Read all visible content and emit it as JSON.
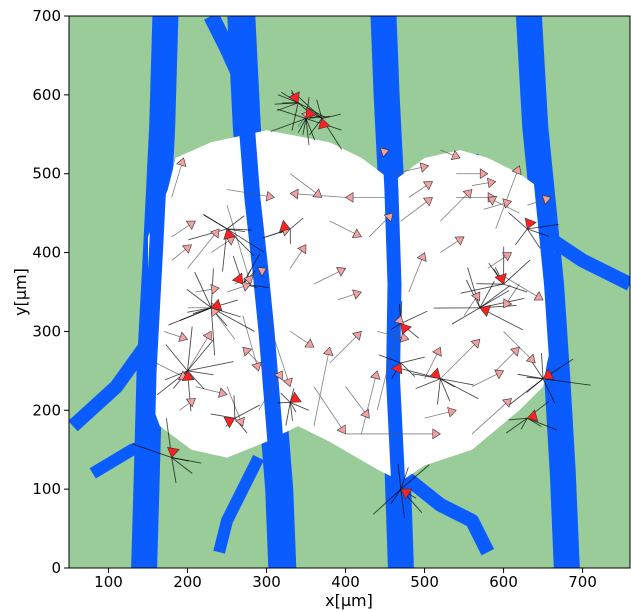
{
  "chart_data": {
    "type": "scatter",
    "xlabel": "x[μm]",
    "ylabel": "y[μm]",
    "xlim": [
      50,
      760
    ],
    "ylim": [
      0,
      700
    ],
    "xticks": [
      100,
      200,
      300,
      400,
      500,
      600,
      700
    ],
    "yticks": [
      0,
      100,
      200,
      300,
      400,
      500,
      600,
      700
    ],
    "grid": false,
    "legend": "none",
    "colors": {
      "tissue_background": "#99cc99",
      "vessel": "#0b5cff",
      "wound_region": "#ffffff",
      "arrow_fill": "#f4a0a0",
      "arrow_highlight": "#ff2020",
      "trail": "#555555",
      "cluster_trail": "#000000"
    },
    "vessel_segments": [
      {
        "points": [
          [
            145,
            0
          ],
          [
            148,
            100
          ],
          [
            152,
            250
          ],
          [
            160,
            400
          ],
          [
            168,
            560
          ],
          [
            172,
            700
          ]
        ],
        "width": 26
      },
      {
        "points": [
          [
            320,
            0
          ],
          [
            316,
            100
          ],
          [
            308,
            200
          ],
          [
            300,
            300
          ],
          [
            292,
            380
          ],
          [
            282,
            470
          ],
          [
            275,
            560
          ],
          [
            268,
            700
          ]
        ],
        "width": 28
      },
      {
        "points": [
          [
            470,
            0
          ],
          [
            466,
            120
          ],
          [
            460,
            240
          ],
          [
            462,
            360
          ],
          [
            458,
            480
          ],
          [
            452,
            600
          ],
          [
            448,
            700
          ]
        ],
        "width": 26
      },
      {
        "points": [
          [
            680,
            0
          ],
          [
            675,
            120
          ],
          [
            668,
            240
          ],
          [
            660,
            360
          ],
          [
            650,
            460
          ],
          [
            640,
            560
          ],
          [
            632,
            700
          ]
        ],
        "width": 26
      },
      {
        "points": [
          [
            55,
            180
          ],
          [
            110,
            230
          ],
          [
            160,
            300
          ],
          [
            210,
            330
          ],
          [
            245,
            345
          ]
        ],
        "width": 14
      },
      {
        "points": [
          [
            80,
            120
          ],
          [
            130,
            150
          ],
          [
            160,
            160
          ]
        ],
        "width": 12
      },
      {
        "points": [
          [
            230,
            700
          ],
          [
            250,
            660
          ],
          [
            268,
            620
          ]
        ],
        "width": 16
      },
      {
        "points": [
          [
            560,
            520
          ],
          [
            600,
            470
          ],
          [
            640,
            430
          ],
          [
            700,
            390
          ],
          [
            760,
            360
          ]
        ],
        "width": 14
      },
      {
        "points": [
          [
            470,
            120
          ],
          [
            520,
            80
          ],
          [
            560,
            60
          ],
          [
            580,
            20
          ]
        ],
        "width": 14
      },
      {
        "points": [
          [
            290,
            140
          ],
          [
            270,
            100
          ],
          [
            250,
            60
          ],
          [
            240,
            20
          ]
        ],
        "width": 12
      }
    ],
    "wound_polygon": [
      [
        150,
        260
      ],
      [
        150,
        420
      ],
      [
        175,
        480
      ],
      [
        185,
        520
      ],
      [
        230,
        540
      ],
      [
        300,
        555
      ],
      [
        380,
        540
      ],
      [
        420,
        520
      ],
      [
        460,
        490
      ],
      [
        500,
        520
      ],
      [
        545,
        530
      ],
      [
        580,
        520
      ],
      [
        620,
        500
      ],
      [
        655,
        475
      ],
      [
        655,
        440
      ],
      [
        665,
        400
      ],
      [
        665,
        300
      ],
      [
        655,
        260
      ],
      [
        650,
        230
      ],
      [
        620,
        200
      ],
      [
        560,
        150
      ],
      [
        500,
        130
      ],
      [
        470,
        110
      ],
      [
        440,
        125
      ],
      [
        380,
        160
      ],
      [
        340,
        180
      ],
      [
        300,
        160
      ],
      [
        250,
        140
      ],
      [
        205,
        150
      ],
      [
        165,
        180
      ],
      [
        150,
        220
      ]
    ],
    "trajectories": [
      {
        "from": [
          360,
          180
        ],
        "to": [
          380,
          280
        ]
      },
      {
        "from": [
          420,
          170
        ],
        "to": [
          440,
          250
        ]
      },
      {
        "from": [
          380,
          260
        ],
        "to": [
          420,
          300
        ]
      },
      {
        "from": [
          300,
          320
        ],
        "to": [
          330,
          230
        ]
      },
      {
        "from": [
          250,
          480
        ],
        "to": [
          310,
          470
        ]
      },
      {
        "from": [
          180,
          470
        ],
        "to": [
          195,
          520
        ]
      },
      {
        "from": [
          250,
          460
        ],
        "to": [
          280,
          360
        ]
      },
      {
        "from": [
          300,
          420
        ],
        "to": [
          330,
          430
        ]
      },
      {
        "from": [
          200,
          330
        ],
        "to": [
          240,
          330
        ]
      },
      {
        "from": [
          520,
          240
        ],
        "to": [
          570,
          290
        ]
      },
      {
        "from": [
          590,
          430
        ],
        "to": [
          620,
          510
        ]
      },
      {
        "from": [
          540,
          470
        ],
        "to": [
          590,
          470
        ]
      },
      {
        "from": [
          600,
          300
        ],
        "to": [
          640,
          260
        ]
      },
      {
        "from": [
          500,
          190
        ],
        "to": [
          540,
          200
        ]
      },
      {
        "from": [
          560,
          170
        ],
        "to": [
          610,
          215
        ]
      },
      {
        "from": [
          440,
          200
        ],
        "to": [
          470,
          320
        ]
      },
      {
        "from": [
          330,
          500
        ],
        "to": [
          370,
          470
        ]
      },
      {
        "from": [
          400,
          230
        ],
        "to": [
          430,
          190
        ]
      },
      {
        "from": [
          270,
          320
        ],
        "to": [
          290,
          250
        ]
      },
      {
        "from": [
          160,
          260
        ],
        "to": [
          200,
          240
        ]
      },
      {
        "from": [
          340,
          560
        ],
        "to": [
          355,
          580
        ]
      },
      {
        "from": [
          600,
          370
        ],
        "to": [
          650,
          340
        ]
      },
      {
        "from": [
          580,
          380
        ],
        "to": [
          610,
          400
        ]
      },
      {
        "from": [
          440,
          300
        ],
        "to": [
          480,
          290
        ]
      },
      {
        "from": [
          360,
          230
        ],
        "to": [
          400,
          170
        ]
      },
      {
        "from": [
          470,
          440
        ],
        "to": [
          510,
          470
        ]
      },
      {
        "from": [
          290,
          200
        ],
        "to": [
          320,
          250
        ]
      },
      {
        "from": [
          200,
          380
        ],
        "to": [
          240,
          430
        ]
      },
      {
        "from": [
          520,
          440
        ],
        "to": [
          560,
          480
        ]
      },
      {
        "from": [
          620,
          360
        ],
        "to": [
          600,
          330
        ]
      },
      {
        "from": [
          230,
          400
        ],
        "to": [
          260,
          420
        ]
      },
      {
        "from": [
          330,
          300
        ],
        "to": [
          360,
          280
        ]
      },
      {
        "from": [
          380,
          440
        ],
        "to": [
          420,
          420
        ]
      },
      {
        "from": [
          560,
          230
        ],
        "to": [
          600,
          250
        ]
      },
      {
        "from": [
          200,
          250
        ],
        "to": [
          230,
          300
        ]
      },
      {
        "from": [
          250,
          230
        ],
        "to": [
          270,
          180
        ]
      },
      {
        "from": [
          390,
          340
        ],
        "to": [
          420,
          350
        ]
      },
      {
        "from": [
          480,
          350
        ],
        "to": [
          500,
          400
        ]
      },
      {
        "from": [
          170,
          300
        ],
        "to": [
          200,
          290
        ]
      },
      {
        "from": [
          500,
          240
        ],
        "to": [
          520,
          280
        ]
      },
      {
        "from": [
          260,
          360
        ],
        "to": [
          300,
          380
        ]
      },
      {
        "from": [
          620,
          450
        ],
        "to": [
          580,
          470
        ]
      },
      {
        "from": [
          300,
          250
        ],
        "to": [
          270,
          280
        ]
      },
      {
        "from": [
          330,
          380
        ],
        "to": [
          350,
          410
        ]
      },
      {
        "from": [
          550,
          320
        ],
        "to": [
          570,
          350
        ]
      },
      {
        "from": [
          430,
          420
        ],
        "to": [
          460,
          450
        ]
      },
      {
        "from": [
          590,
          250
        ],
        "to": [
          620,
          280
        ]
      },
      {
        "from": [
          180,
          420
        ],
        "to": [
          210,
          440
        ]
      },
      {
        "from": [
          360,
          360
        ],
        "to": [
          400,
          380
        ]
      },
      {
        "from": [
          260,
          290
        ],
        "to": [
          230,
          330
        ]
      },
      {
        "from": [
          450,
          470
        ],
        "to": [
          400,
          470
        ]
      },
      {
        "from": [
          400,
          470
        ],
        "to": [
          330,
          475
        ]
      },
      {
        "from": [
          400,
          170
        ],
        "to": [
          520,
          170
        ]
      }
    ],
    "highlight_clusters": [
      {
        "center": [
          340,
          590
        ],
        "n": 10,
        "spread": 26
      },
      {
        "center": [
          350,
          570
        ],
        "n": 10,
        "spread": 30
      },
      {
        "center": [
          230,
          330
        ],
        "n": 12,
        "spread": 40
      },
      {
        "center": [
          200,
          250
        ],
        "n": 10,
        "spread": 38
      },
      {
        "center": [
          250,
          430
        ],
        "n": 9,
        "spread": 34
      },
      {
        "center": [
          270,
          360
        ],
        "n": 6,
        "spread": 30
      },
      {
        "center": [
          330,
          210
        ],
        "n": 7,
        "spread": 28
      },
      {
        "center": [
          470,
          310
        ],
        "n": 5,
        "spread": 28
      },
      {
        "center": [
          520,
          240
        ],
        "n": 8,
        "spread": 36
      },
      {
        "center": [
          570,
          330
        ],
        "n": 10,
        "spread": 38
      },
      {
        "center": [
          600,
          360
        ],
        "n": 8,
        "spread": 34
      },
      {
        "center": [
          650,
          240
        ],
        "n": 9,
        "spread": 38
      },
      {
        "center": [
          630,
          190
        ],
        "n": 6,
        "spread": 30
      },
      {
        "center": [
          180,
          140
        ],
        "n": 6,
        "spread": 34
      },
      {
        "center": [
          470,
          100
        ],
        "n": 8,
        "spread": 30
      },
      {
        "center": [
          370,
          570
        ],
        "n": 6,
        "spread": 30
      },
      {
        "center": [
          470,
          260
        ],
        "n": 4,
        "spread": 26
      },
      {
        "center": [
          260,
          190
        ],
        "n": 5,
        "spread": 26
      },
      {
        "center": [
          330,
          430
        ],
        "n": 4,
        "spread": 24
      },
      {
        "center": [
          630,
          430
        ],
        "n": 5,
        "spread": 28
      }
    ],
    "flow_arrows_along_vessels": [
      {
        "at": [
          540,
          500
        ],
        "to": [
          580,
          500
        ]
      },
      {
        "at": [
          460,
          500
        ],
        "to": [
          505,
          510
        ]
      },
      {
        "at": [
          440,
          525
        ],
        "to": [
          455,
          530
        ]
      },
      {
        "at": [
          520,
          530
        ],
        "to": [
          545,
          520
        ]
      },
      {
        "at": [
          480,
          470
        ],
        "to": [
          510,
          490
        ]
      },
      {
        "at": [
          560,
          485
        ],
        "to": [
          590,
          490
        ]
      },
      {
        "at": [
          575,
          455
        ],
        "to": [
          610,
          465
        ]
      },
      {
        "at": [
          210,
          350
        ],
        "to": [
          240,
          355
        ]
      },
      {
        "at": [
          250,
          350
        ],
        "to": [
          280,
          360
        ]
      },
      {
        "at": [
          180,
          390
        ],
        "to": [
          205,
          410
        ]
      },
      {
        "at": [
          210,
          230
        ],
        "to": [
          250,
          220
        ]
      },
      {
        "at": [
          190,
          200
        ],
        "to": [
          210,
          215
        ]
      },
      {
        "at": [
          520,
          400
        ],
        "to": [
          550,
          420
        ]
      },
      {
        "at": [
          630,
          460
        ],
        "to": [
          660,
          470
        ]
      }
    ]
  }
}
